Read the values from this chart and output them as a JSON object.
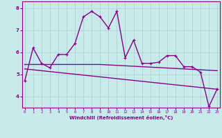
{
  "xlabel": "Windchill (Refroidissement éolien,°C)",
  "bg_color": "#c8eaea",
  "line_color": "#880088",
  "grid_color": "#aacccc",
  "x_ticks": [
    0,
    1,
    2,
    3,
    4,
    5,
    6,
    7,
    8,
    9,
    10,
    11,
    12,
    13,
    14,
    15,
    16,
    17,
    18,
    19,
    20,
    21,
    22,
    23
  ],
  "y_ticks": [
    4,
    5,
    6,
    7,
    8
  ],
  "ylim": [
    3.5,
    8.3
  ],
  "xlim": [
    -0.3,
    23.3
  ],
  "main_y": [
    4.7,
    6.2,
    5.5,
    5.3,
    5.9,
    5.9,
    6.4,
    7.6,
    7.85,
    7.6,
    7.1,
    7.85,
    5.75,
    6.55,
    5.5,
    5.5,
    5.55,
    5.85,
    5.85,
    5.35,
    5.35,
    5.1,
    3.55,
    4.35
  ],
  "trend1_y": [
    5.45,
    5.45,
    5.45,
    5.45,
    5.45,
    5.45,
    5.45,
    5.45,
    5.45,
    5.45,
    5.43,
    5.41,
    5.39,
    5.37,
    5.35,
    5.33,
    5.31,
    5.29,
    5.27,
    5.25,
    5.23,
    5.21,
    5.19,
    5.17
  ],
  "trend2_y": [
    5.25,
    5.21,
    5.17,
    5.13,
    5.09,
    5.05,
    5.01,
    4.97,
    4.93,
    4.89,
    4.85,
    4.81,
    4.77,
    4.73,
    4.69,
    4.65,
    4.61,
    4.57,
    4.53,
    4.49,
    4.45,
    4.41,
    4.37,
    4.33
  ]
}
